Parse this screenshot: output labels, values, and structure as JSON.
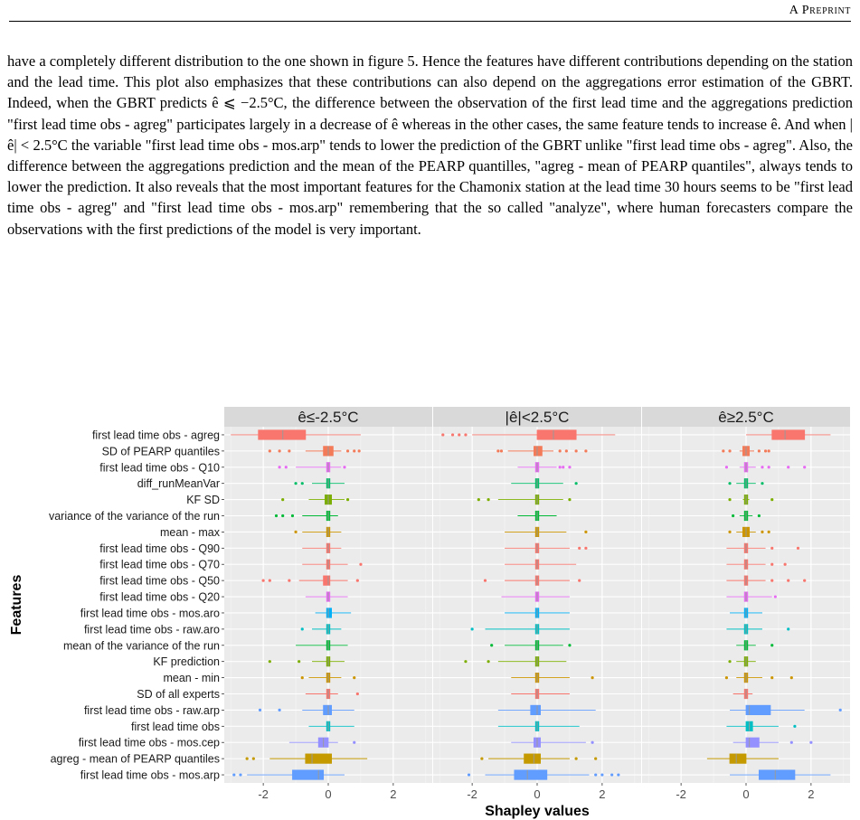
{
  "header": {
    "running_head": "A Preprint"
  },
  "body": {
    "paragraph": "have a completely different distribution to the one shown in figure 5. Hence the features have different contributions depending on the station and the lead time. This plot also emphasizes that these contributions can also depend on the aggregations error estimation of the GBRT. Indeed, when the GBRT predicts ê ⩽ −2.5°C, the difference between the observation of the first lead time and the aggregations prediction \"first lead time obs - agreg\" participates largely in a decrease of ê whereas in the other cases, the same feature tends to increase ê. And when |ê| < 2.5°C the variable \"first lead time obs - mos.arp\" tends to lower the prediction of the GBRT unlike \"first lead time obs - agreg\". Also, the difference between the aggregations prediction and the mean of the PEARP quantilles, \"agreg - mean of PEARP quantiles\", always tends to lower the prediction. It also reveals that the most important features for the Chamonix station at the lead time 30 hours seems to be \"first lead time obs - agreg\" and \"first lead time obs - mos.arp\" remembering that the so called \"analyze\", where human forecasters compare the observations with the first predictions of the model is very important."
  },
  "chart_data": {
    "type": "boxplot",
    "xlabel": "Shapley values",
    "ylabel": "Features",
    "xlim": [
      -3.2,
      3.2
    ],
    "xticks": [
      -2,
      0,
      2
    ],
    "grid": true,
    "panels": [
      {
        "title": "ê≤-2.5°C"
      },
      {
        "title": "|ê|<2.5°C"
      },
      {
        "title": "ê≥2.5°C"
      }
    ],
    "features": [
      {
        "name": "first lead time obs - agreg",
        "color": "#F8766D",
        "boxes": [
          {
            "wlo": -3.0,
            "q1": -2.15,
            "med": -1.4,
            "q3": -0.7,
            "whi": 1.0,
            "out": []
          },
          {
            "wlo": -2.0,
            "q1": 0.0,
            "med": 0.5,
            "q3": 1.2,
            "whi": 2.4,
            "out": [
              -2.9,
              -2.6,
              -2.4,
              -2.2
            ]
          },
          {
            "wlo": 0.0,
            "q1": 0.8,
            "med": 1.2,
            "q3": 1.8,
            "whi": 2.6,
            "out": []
          }
        ]
      },
      {
        "name": "SD of PEARP quantiles",
        "color": "#F37B59",
        "boxes": [
          {
            "wlo": -0.7,
            "q1": -0.15,
            "med": 0.0,
            "q3": 0.15,
            "whi": 0.4,
            "out": [
              -1.8,
              -1.5,
              -1.2,
              0.6,
              0.8,
              0.95
            ]
          },
          {
            "wlo": -0.9,
            "q1": -0.1,
            "med": 0.0,
            "q3": 0.15,
            "whi": 0.5,
            "out": [
              -1.2,
              -1.1,
              0.7,
              0.9,
              1.2,
              1.5
            ]
          },
          {
            "wlo": -0.2,
            "q1": -0.1,
            "med": 0.0,
            "q3": 0.1,
            "whi": 0.25,
            "out": [
              -0.7,
              -0.5,
              0.4,
              0.6,
              0.7
            ]
          }
        ]
      },
      {
        "name": "first lead time obs - Q10",
        "color": "#E76BF3",
        "boxes": [
          {
            "wlo": -1.0,
            "q1": -0.05,
            "med": 0.0,
            "q3": 0.05,
            "whi": 0.4,
            "out": [
              -1.5,
              -1.3,
              0.5
            ]
          },
          {
            "wlo": -0.6,
            "q1": -0.05,
            "med": 0.0,
            "q3": 0.05,
            "whi": 0.6,
            "out": [
              0.7,
              0.8,
              1.0
            ]
          },
          {
            "wlo": -0.2,
            "q1": -0.05,
            "med": 0.0,
            "q3": 0.05,
            "whi": 0.3,
            "out": [
              -0.6,
              0.5,
              0.7,
              1.3,
              1.8
            ]
          }
        ]
      },
      {
        "name": "diff_runMeanVar",
        "color": "#00BE67",
        "boxes": [
          {
            "wlo": -0.5,
            "q1": -0.05,
            "med": 0.0,
            "q3": 0.05,
            "whi": 0.5,
            "out": [
              -1.0,
              -0.8
            ]
          },
          {
            "wlo": -0.8,
            "q1": -0.05,
            "med": 0.0,
            "q3": 0.05,
            "whi": 0.8,
            "out": [
              1.2
            ]
          },
          {
            "wlo": -0.3,
            "q1": -0.05,
            "med": 0.0,
            "q3": 0.05,
            "whi": 0.3,
            "out": [
              -0.5,
              0.5
            ]
          }
        ]
      },
      {
        "name": "KF SD",
        "color": "#7CAE00",
        "boxes": [
          {
            "wlo": -0.6,
            "q1": -0.1,
            "med": 0.0,
            "q3": 0.1,
            "whi": 0.5,
            "out": [
              -1.4,
              0.6
            ]
          },
          {
            "wlo": -1.2,
            "q1": -0.05,
            "med": 0.0,
            "q3": 0.05,
            "whi": 0.8,
            "out": [
              -1.8,
              -1.5,
              1.0
            ]
          },
          {
            "wlo": -0.1,
            "q1": -0.05,
            "med": 0.0,
            "q3": 0.05,
            "whi": 0.1,
            "out": [
              -0.5,
              0.8
            ]
          }
        ]
      },
      {
        "name": "variance of the variance of the run",
        "color": "#00BA38",
        "boxes": [
          {
            "wlo": -0.8,
            "q1": -0.05,
            "med": 0.0,
            "q3": 0.05,
            "whi": 0.3,
            "out": [
              -1.6,
              -1.4,
              -1.1
            ]
          },
          {
            "wlo": -0.6,
            "q1": -0.05,
            "med": 0.0,
            "q3": 0.05,
            "whi": 0.6,
            "out": []
          },
          {
            "wlo": -0.2,
            "q1": -0.05,
            "med": 0.0,
            "q3": 0.05,
            "whi": 0.2,
            "out": [
              -0.4,
              0.4
            ]
          }
        ]
      },
      {
        "name": "mean - max",
        "color": "#CD9600",
        "boxes": [
          {
            "wlo": -0.8,
            "q1": -0.05,
            "med": 0.0,
            "q3": 0.05,
            "whi": 0.4,
            "out": [
              -1.0
            ]
          },
          {
            "wlo": -1.0,
            "q1": -0.05,
            "med": 0.0,
            "q3": 0.05,
            "whi": 0.9,
            "out": [
              1.5
            ]
          },
          {
            "wlo": -0.3,
            "q1": -0.1,
            "med": 0.0,
            "q3": 0.1,
            "whi": 0.3,
            "out": [
              -0.5,
              0.5,
              0.7
            ]
          }
        ]
      },
      {
        "name": "first lead time obs - Q90",
        "color": "#F8766D",
        "boxes": [
          {
            "wlo": -0.8,
            "q1": -0.05,
            "med": 0.0,
            "q3": 0.05,
            "whi": 0.4,
            "out": []
          },
          {
            "wlo": -1.0,
            "q1": -0.05,
            "med": 0.0,
            "q3": 0.05,
            "whi": 1.0,
            "out": [
              1.3,
              1.5
            ]
          },
          {
            "wlo": -0.6,
            "q1": -0.05,
            "med": 0.0,
            "q3": 0.05,
            "whi": 0.6,
            "out": [
              0.8,
              1.6
            ]
          }
        ]
      },
      {
        "name": "first lead time obs - Q70",
        "color": "#F8766D",
        "boxes": [
          {
            "wlo": -0.8,
            "q1": -0.05,
            "med": 0.0,
            "q3": 0.05,
            "whi": 0.6,
            "out": [
              1.0
            ]
          },
          {
            "wlo": -1.0,
            "q1": -0.05,
            "med": 0.0,
            "q3": 0.05,
            "whi": 1.2,
            "out": []
          },
          {
            "wlo": -0.6,
            "q1": -0.05,
            "med": 0.0,
            "q3": 0.05,
            "whi": 0.6,
            "out": [
              0.8,
              1.2
            ]
          }
        ]
      },
      {
        "name": "first lead time obs - Q50",
        "color": "#F8766D",
        "boxes": [
          {
            "wlo": -0.9,
            "q1": -0.15,
            "med": 0.0,
            "q3": 0.05,
            "whi": 0.6,
            "out": [
              -2.0,
              -1.8,
              -1.2,
              0.9
            ]
          },
          {
            "wlo": -1.0,
            "q1": -0.05,
            "med": 0.0,
            "q3": 0.05,
            "whi": 1.0,
            "out": [
              -1.6,
              1.3
            ]
          },
          {
            "wlo": -0.6,
            "q1": -0.05,
            "med": 0.0,
            "q3": 0.05,
            "whi": 0.6,
            "out": [
              0.8,
              1.3,
              1.8
            ]
          }
        ]
      },
      {
        "name": "first lead time obs - Q20",
        "color": "#E76BF3",
        "boxes": [
          {
            "wlo": -0.7,
            "q1": -0.05,
            "med": 0.0,
            "q3": 0.05,
            "whi": 0.6,
            "out": []
          },
          {
            "wlo": -1.1,
            "q1": -0.05,
            "med": 0.0,
            "q3": 0.05,
            "whi": 1.0,
            "out": []
          },
          {
            "wlo": -0.6,
            "q1": -0.05,
            "med": 0.0,
            "q3": 0.05,
            "whi": 0.8,
            "out": [
              0.9
            ]
          }
        ]
      },
      {
        "name": "first lead time obs - mos.aro",
        "color": "#00B0F6",
        "boxes": [
          {
            "wlo": -0.4,
            "q1": -0.05,
            "med": 0.0,
            "q3": 0.1,
            "whi": 0.7,
            "out": []
          },
          {
            "wlo": -1.0,
            "q1": -0.05,
            "med": 0.0,
            "q3": 0.05,
            "whi": 1.0,
            "out": []
          },
          {
            "wlo": -0.5,
            "q1": -0.05,
            "med": 0.0,
            "q3": 0.05,
            "whi": 0.5,
            "out": []
          }
        ]
      },
      {
        "name": "first lead time obs - raw.aro",
        "color": "#00BFC4",
        "boxes": [
          {
            "wlo": -0.5,
            "q1": -0.05,
            "med": 0.0,
            "q3": 0.05,
            "whi": 0.4,
            "out": [
              -0.8
            ]
          },
          {
            "wlo": -1.6,
            "q1": -0.05,
            "med": 0.0,
            "q3": 0.05,
            "whi": 1.0,
            "out": [
              -2.0
            ]
          },
          {
            "wlo": -0.6,
            "q1": -0.05,
            "med": 0.0,
            "q3": 0.05,
            "whi": 0.5,
            "out": [
              1.3
            ]
          }
        ]
      },
      {
        "name": "mean of the variance of the run",
        "color": "#00BA38",
        "boxes": [
          {
            "wlo": -1.0,
            "q1": -0.05,
            "med": 0.0,
            "q3": 0.05,
            "whi": 0.6,
            "out": []
          },
          {
            "wlo": -1.0,
            "q1": -0.05,
            "med": 0.0,
            "q3": 0.05,
            "whi": 0.8,
            "out": [
              -1.4,
              1.0
            ]
          },
          {
            "wlo": -0.3,
            "q1": -0.05,
            "med": 0.0,
            "q3": 0.05,
            "whi": 0.3,
            "out": [
              0.8
            ]
          }
        ]
      },
      {
        "name": "KF prediction",
        "color": "#7CAE00",
        "boxes": [
          {
            "wlo": -0.5,
            "q1": -0.05,
            "med": 0.0,
            "q3": 0.05,
            "whi": 0.5,
            "out": [
              -1.8,
              -0.9
            ]
          },
          {
            "wlo": -1.2,
            "q1": -0.05,
            "med": 0.0,
            "q3": 0.05,
            "whi": 0.9,
            "out": [
              -2.2,
              -1.5
            ]
          },
          {
            "wlo": -0.3,
            "q1": -0.05,
            "med": 0.0,
            "q3": 0.05,
            "whi": 0.3,
            "out": [
              -0.5
            ]
          }
        ]
      },
      {
        "name": "mean - min",
        "color": "#CD9600",
        "boxes": [
          {
            "wlo": -0.6,
            "q1": -0.05,
            "med": 0.0,
            "q3": 0.05,
            "whi": 0.4,
            "out": [
              -0.8,
              0.8
            ]
          },
          {
            "wlo": -0.8,
            "q1": -0.05,
            "med": 0.0,
            "q3": 0.05,
            "whi": 1.0,
            "out": [
              1.7
            ]
          },
          {
            "wlo": -0.3,
            "q1": -0.05,
            "med": 0.0,
            "q3": 0.05,
            "whi": 0.5,
            "out": [
              -0.6,
              0.8,
              1.4
            ]
          }
        ]
      },
      {
        "name": "SD of all experts",
        "color": "#F8766D",
        "boxes": [
          {
            "wlo": -0.7,
            "q1": -0.05,
            "med": 0.0,
            "q3": 0.05,
            "whi": 0.3,
            "out": [
              0.9
            ]
          },
          {
            "wlo": -0.8,
            "q1": -0.05,
            "med": 0.0,
            "q3": 0.05,
            "whi": 1.0,
            "out": []
          },
          {
            "wlo": -0.4,
            "q1": -0.05,
            "med": 0.0,
            "q3": 0.05,
            "whi": 0.2,
            "out": []
          }
        ]
      },
      {
        "name": "first lead time obs - raw.arp",
        "color": "#619CFF",
        "boxes": [
          {
            "wlo": -0.8,
            "q1": -0.15,
            "med": 0.0,
            "q3": 0.1,
            "whi": 0.8,
            "out": [
              -2.1,
              -1.5
            ]
          },
          {
            "wlo": -1.2,
            "q1": -0.2,
            "med": 0.0,
            "q3": 0.1,
            "whi": 1.8,
            "out": []
          },
          {
            "wlo": -0.5,
            "q1": 0.0,
            "med": 0.1,
            "q3": 0.75,
            "whi": 1.8,
            "out": [
              2.9
            ]
          }
        ]
      },
      {
        "name": "first lead time obs",
        "color": "#00BFC4",
        "boxes": [
          {
            "wlo": -0.6,
            "q1": -0.05,
            "med": 0.0,
            "q3": 0.05,
            "whi": 0.8,
            "out": []
          },
          {
            "wlo": -1.2,
            "q1": -0.05,
            "med": 0.0,
            "q3": 0.05,
            "whi": 1.3,
            "out": []
          },
          {
            "wlo": -0.6,
            "q1": 0.0,
            "med": 0.1,
            "q3": 0.2,
            "whi": 1.0,
            "out": [
              1.5
            ]
          }
        ]
      },
      {
        "name": "first lead time obs - mos.cep",
        "color": "#9590FF",
        "boxes": [
          {
            "wlo": -1.2,
            "q1": -0.3,
            "med": -0.15,
            "q3": 0.0,
            "whi": 0.3,
            "out": [
              0.8
            ]
          },
          {
            "wlo": -0.8,
            "q1": -0.1,
            "med": 0.0,
            "q3": 0.1,
            "whi": 1.5,
            "out": [
              1.7
            ]
          },
          {
            "wlo": -0.4,
            "q1": 0.0,
            "med": 0.1,
            "q3": 0.4,
            "whi": 1.0,
            "out": [
              1.4,
              2.0
            ]
          }
        ]
      },
      {
        "name": "agreg - mean of PEARP quantiles",
        "color": "#C49A00",
        "boxes": [
          {
            "wlo": -1.8,
            "q1": -0.7,
            "med": -0.5,
            "q3": 0.1,
            "whi": 1.2,
            "out": [
              -2.5,
              -2.3
            ]
          },
          {
            "wlo": -1.5,
            "q1": -0.4,
            "med": -0.1,
            "q3": 0.1,
            "whi": 1.0,
            "out": [
              -1.7,
              1.2,
              1.8
            ]
          },
          {
            "wlo": -1.2,
            "q1": -0.5,
            "med": -0.3,
            "q3": 0.0,
            "whi": 1.0,
            "out": []
          }
        ]
      },
      {
        "name": "first lead time obs - mos.arp",
        "color": "#619CFF",
        "boxes": [
          {
            "wlo": -2.5,
            "q1": -1.1,
            "med": -0.3,
            "q3": -0.15,
            "whi": 0.5,
            "out": [
              -2.9,
              -2.7
            ]
          },
          {
            "wlo": -1.6,
            "q1": -0.7,
            "med": -0.3,
            "q3": 0.3,
            "whi": 1.6,
            "out": [
              -2.1,
              1.8,
              2.0,
              2.3,
              2.5
            ]
          },
          {
            "wlo": -0.5,
            "q1": 0.4,
            "med": 0.9,
            "q3": 1.5,
            "whi": 2.6,
            "out": []
          }
        ]
      }
    ]
  }
}
